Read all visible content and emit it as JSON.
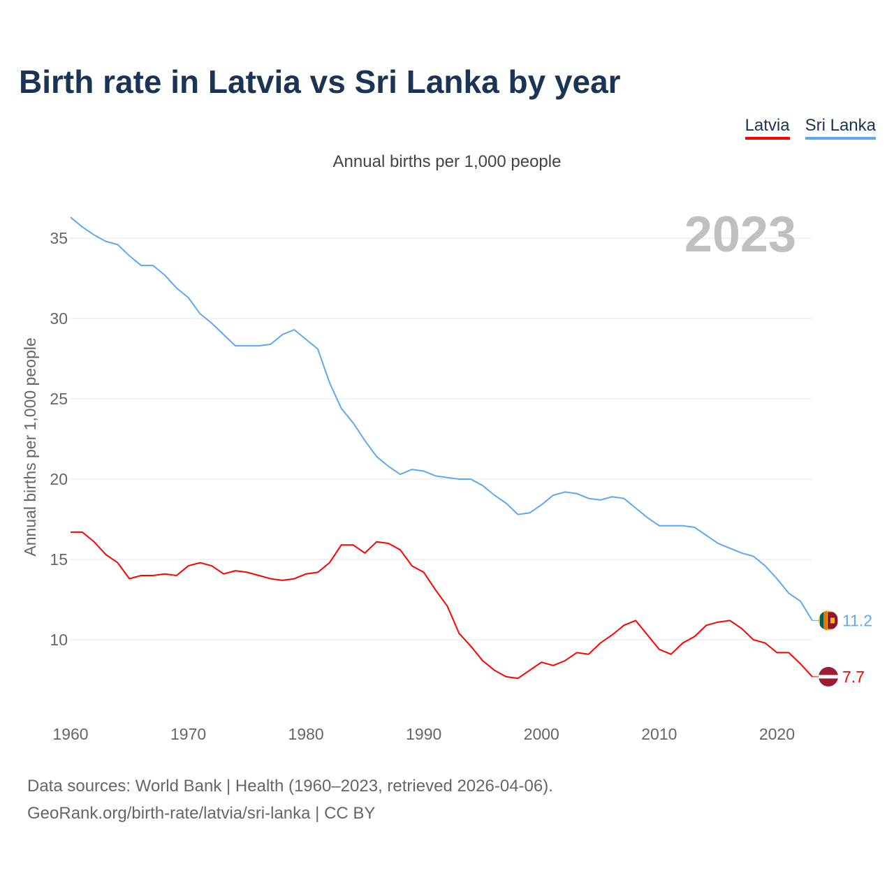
{
  "title": "Birth rate in Latvia vs Sri Lanka by year",
  "footer": {
    "line1": "Data sources: World Bank | Health (1960–2023, retrieved 2026-04-06).",
    "line2": "GeoRank.org/birth-rate/latvia/sri-lanka | CC BY"
  },
  "chart_data": {
    "type": "line",
    "title": "Birth rate in Latvia vs Sri Lanka by year",
    "subtitle": "Annual births per 1,000 people",
    "ylabel": "Annual births per 1,000 people",
    "xlabel": "",
    "year_label": "2023",
    "xlim": [
      1960,
      2023
    ],
    "ylim": [
      5,
      37
    ],
    "xticks": [
      1960,
      1970,
      1980,
      1990,
      2000,
      2010,
      2020
    ],
    "yticks": [
      10,
      15,
      20,
      25,
      30,
      35
    ],
    "grid": true,
    "legend_position": "top-right",
    "x_start": 1960,
    "series": [
      {
        "name": "Latvia",
        "color": "#ff0000",
        "end_label": "7.7",
        "flag": "latvia-flag",
        "values": [
          16.7,
          16.7,
          16.1,
          15.3,
          14.8,
          13.8,
          14.0,
          14.0,
          14.1,
          14.0,
          14.6,
          14.8,
          14.6,
          14.1,
          14.3,
          14.2,
          14.0,
          13.8,
          13.7,
          13.8,
          14.1,
          14.2,
          14.8,
          15.9,
          15.9,
          15.4,
          16.1,
          16.0,
          15.6,
          14.6,
          14.2,
          13.1,
          12.1,
          10.4,
          9.6,
          8.7,
          8.1,
          7.7,
          7.6,
          8.1,
          8.6,
          8.4,
          8.7,
          9.2,
          9.1,
          9.8,
          10.3,
          10.9,
          11.2,
          10.3,
          9.4,
          9.1,
          9.8,
          10.2,
          10.9,
          11.1,
          11.2,
          10.7,
          10.0,
          9.8,
          9.2,
          9.2,
          8.5,
          7.7
        ]
      },
      {
        "name": "Sri Lanka",
        "color": "#5ea8f0",
        "end_label": "11.2",
        "flag": "sri-lanka-flag",
        "values": [
          36.3,
          35.7,
          35.2,
          34.8,
          34.6,
          33.9,
          33.3,
          33.3,
          32.7,
          31.9,
          31.3,
          30.3,
          29.7,
          29.0,
          28.3,
          28.3,
          28.3,
          28.4,
          29.0,
          29.3,
          28.7,
          28.1,
          26.0,
          24.4,
          23.5,
          22.4,
          21.4,
          20.8,
          20.3,
          20.6,
          20.5,
          20.2,
          20.1,
          20.0,
          20.0,
          19.6,
          19.0,
          18.5,
          17.8,
          17.9,
          18.4,
          19.0,
          19.2,
          19.1,
          18.8,
          18.7,
          18.9,
          18.8,
          18.2,
          17.6,
          17.1,
          17.1,
          17.1,
          17.0,
          16.5,
          16.0,
          15.7,
          15.4,
          15.2,
          14.6,
          13.8,
          12.9,
          12.4,
          11.2
        ]
      }
    ]
  }
}
